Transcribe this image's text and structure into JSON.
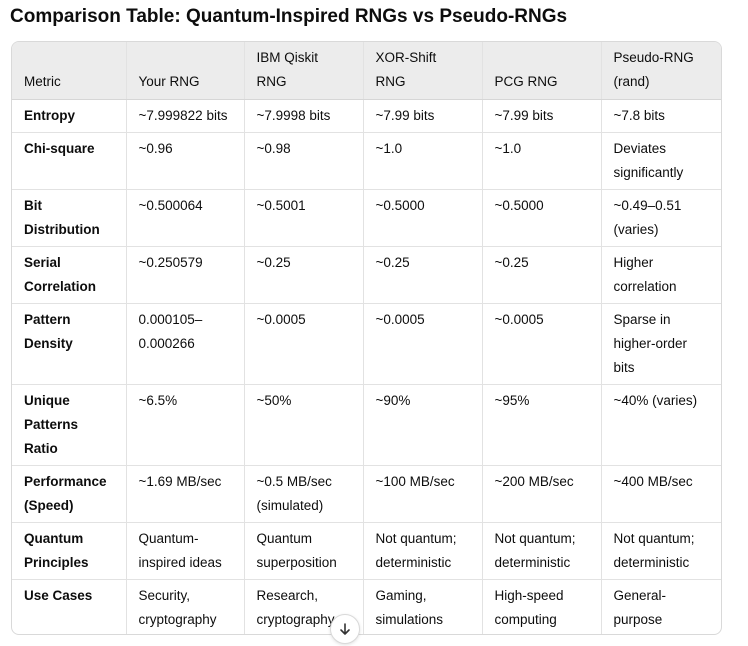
{
  "title": "Comparison Table: Quantum-Inspired RNGs vs Pseudo-RNGs",
  "table": {
    "headers": [
      "Metric",
      "Your RNG",
      "IBM Qiskit RNG",
      "XOR-Shift RNG",
      "PCG RNG",
      "Pseudo-RNG (rand)"
    ],
    "rows": [
      [
        "Entropy",
        "~7.999822 bits",
        "~7.9998 bits",
        "~7.99 bits",
        "~7.99 bits",
        "~7.8 bits"
      ],
      [
        "Chi-square",
        "~0.96",
        "~0.98",
        "~1.0",
        "~1.0",
        "Deviates significantly"
      ],
      [
        "Bit Distribution",
        "~0.500064",
        "~0.5001",
        "~0.5000",
        "~0.5000",
        "~0.49–0.51 (varies)"
      ],
      [
        "Serial Correlation",
        "~0.250579",
        "~0.25",
        "~0.25",
        "~0.25",
        "Higher correlation"
      ],
      [
        "Pattern Density",
        "0.000105–0.000266",
        "~0.0005",
        "~0.0005",
        "~0.0005",
        "Sparse in higher-order bits"
      ],
      [
        "Unique Patterns Ratio",
        "~6.5%",
        "~50%",
        "~90%",
        "~95%",
        "~40% (varies)"
      ],
      [
        "Performance (Speed)",
        "~1.69 MB/sec",
        "~0.5 MB/sec (simulated)",
        "~100 MB/sec",
        "~200 MB/sec",
        "~400 MB/sec"
      ],
      [
        "Quantum Principles",
        "Quantum-inspired ideas",
        "Quantum superposition",
        "Not quantum; deterministic",
        "Not quantum; deterministic",
        "Not quantum; deterministic"
      ],
      [
        "Use Cases",
        "Security, cryptography",
        "Research, cryptography",
        "Gaming, simulations",
        "High-speed computing",
        "General-purpose randomness"
      ]
    ]
  },
  "scroll_button": {
    "icon": "arrow-down-icon"
  }
}
